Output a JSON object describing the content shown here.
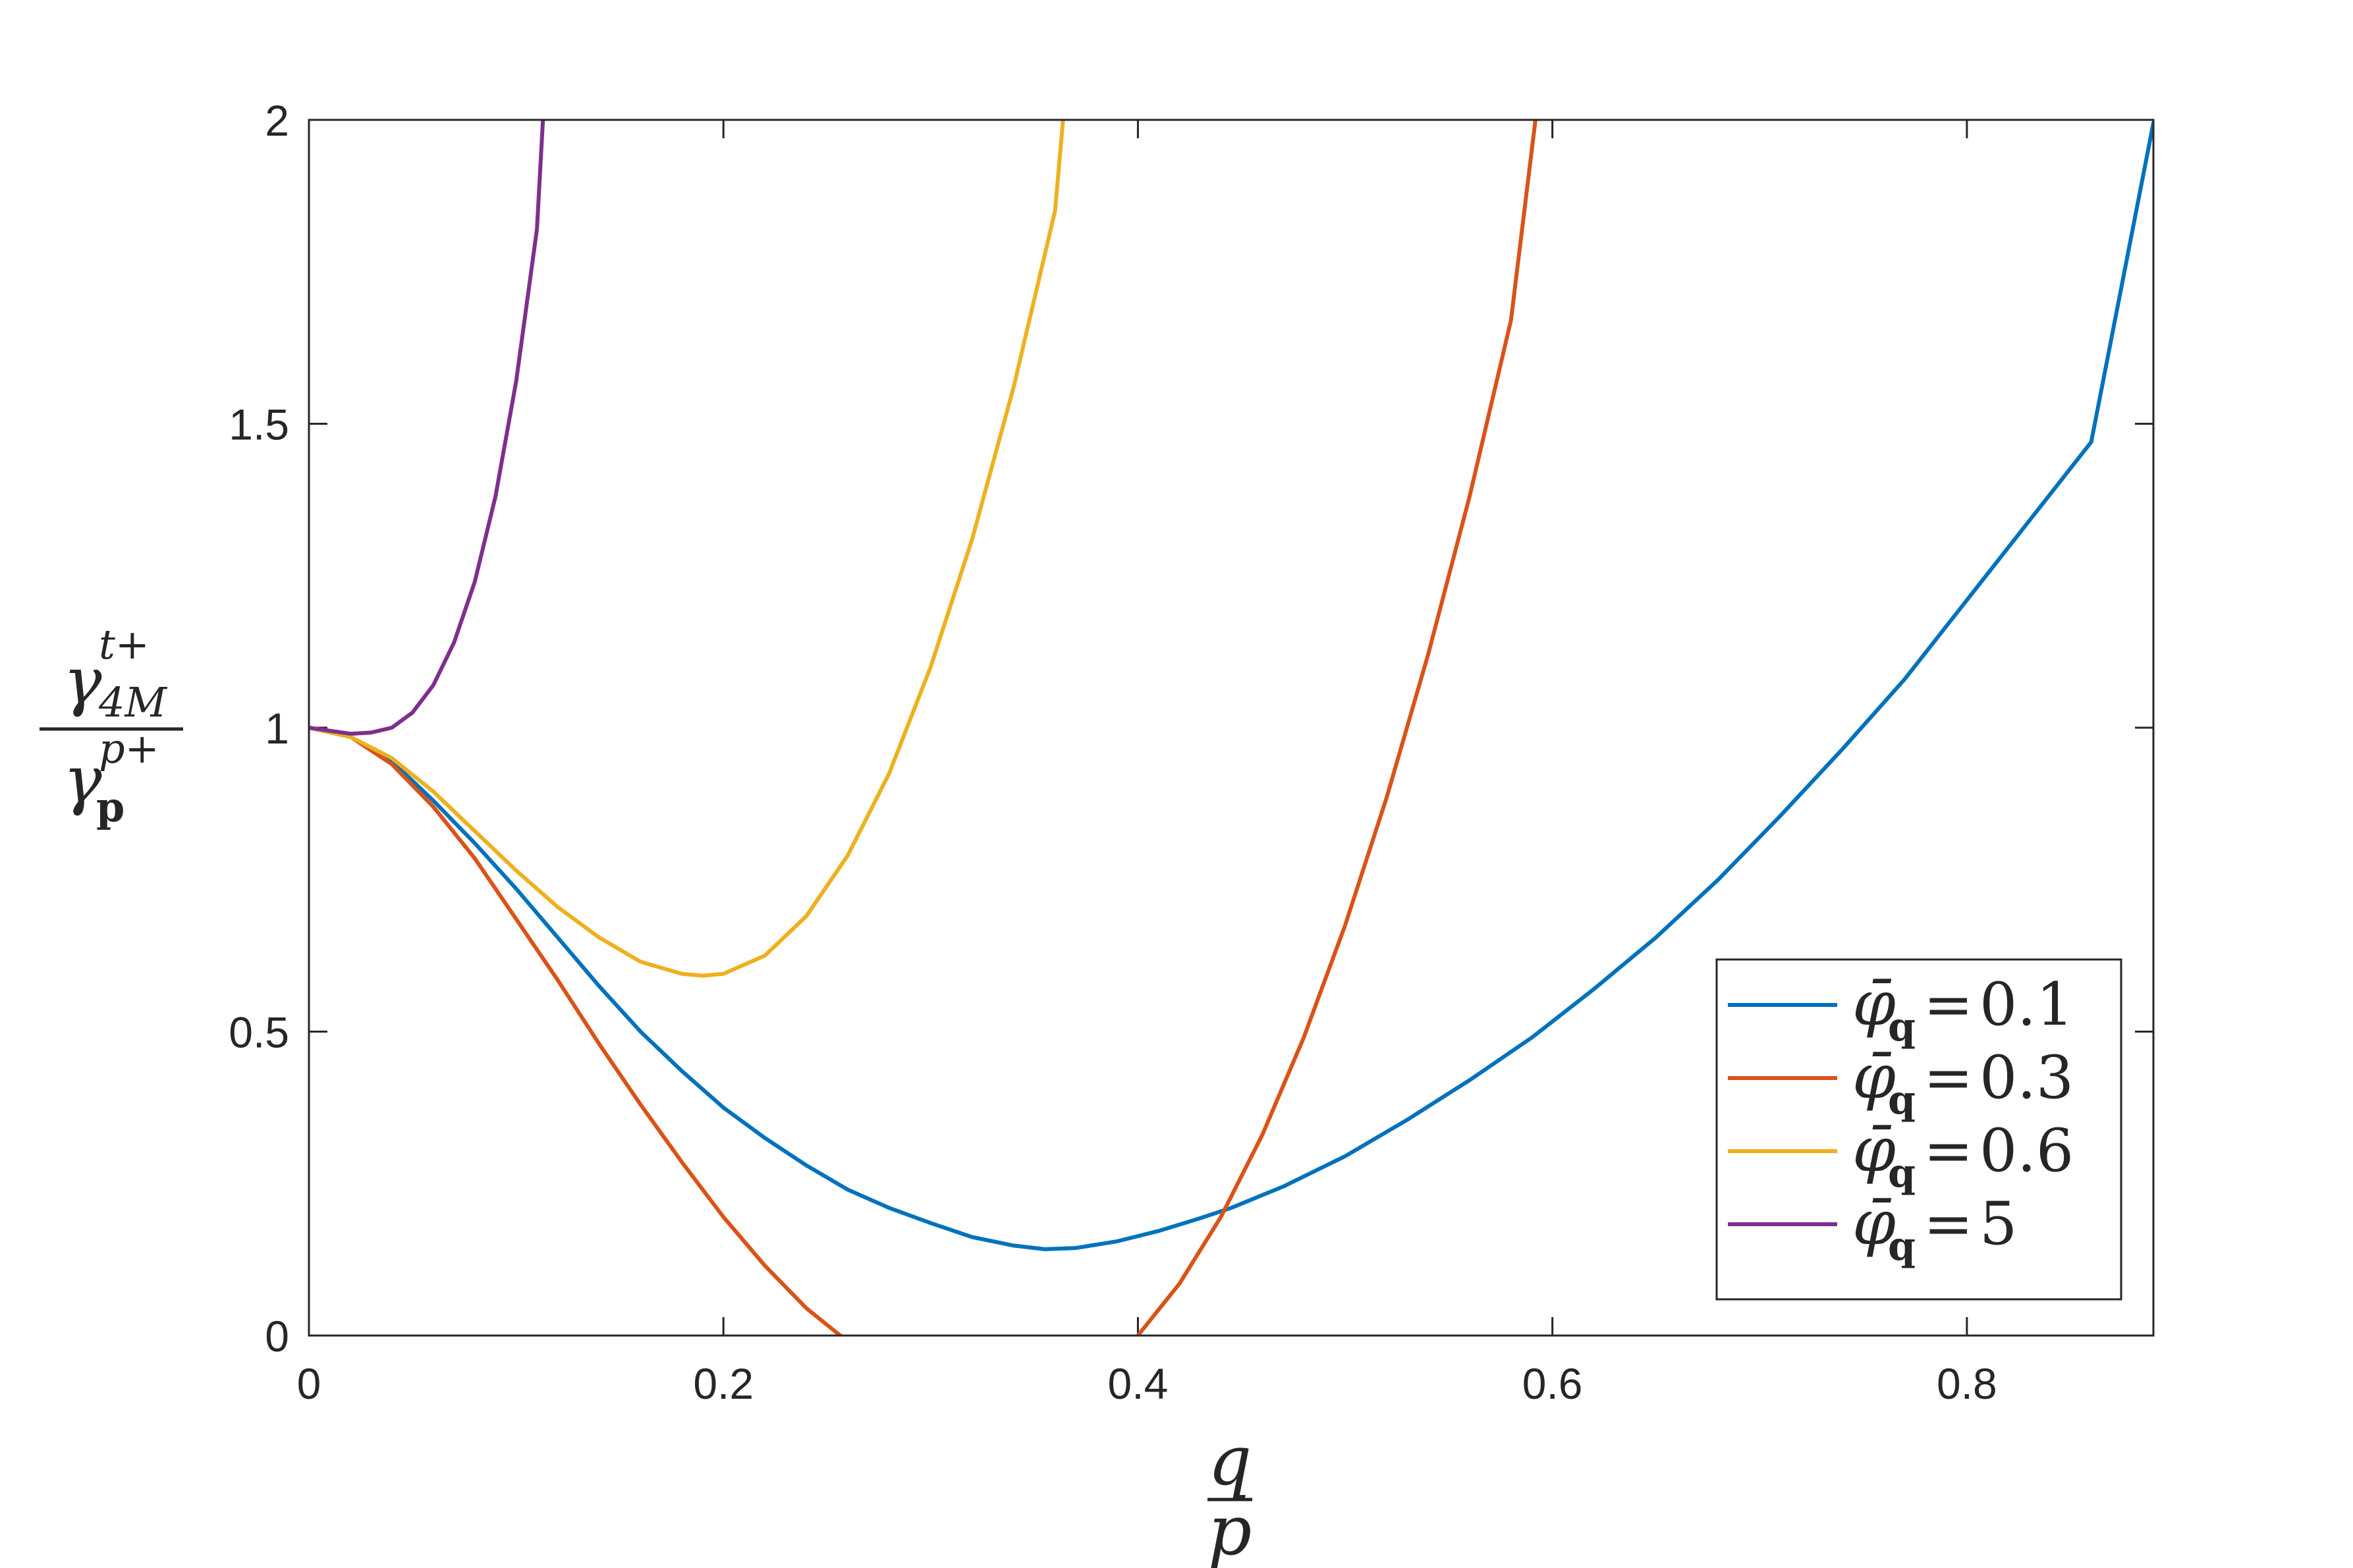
{
  "chart_data": {
    "type": "line",
    "title": "",
    "xlabel": {
      "num": "q",
      "den": "p"
    },
    "ylabel": {
      "num_base": "γ",
      "num_sup": "t+",
      "num_sub": "4M",
      "den_base": "γ",
      "den_sup": "p+",
      "den_sub": "p"
    },
    "xlim": [
      0,
      0.89
    ],
    "ylim": [
      0,
      2
    ],
    "xticks": [
      0,
      0.2,
      0.4,
      0.6,
      0.8
    ],
    "xtick_labels": [
      "0",
      "0.2",
      "0.4",
      "0.6",
      "0.8"
    ],
    "yticks": [
      0,
      0.5,
      1,
      1.5,
      2
    ],
    "ytick_labels": [
      "0",
      "0.5",
      "1",
      "1.5",
      "2"
    ],
    "grid": false,
    "legend_position": "bottom-right",
    "legend_symbol": "φ̄",
    "legend_subscript": "q",
    "series": [
      {
        "name": "0.1",
        "legend_value": "0.1",
        "color": "#0072BD",
        "x": [
          0,
          0.02,
          0.04,
          0.06,
          0.08,
          0.1,
          0.12,
          0.14,
          0.16,
          0.18,
          0.2,
          0.22,
          0.24,
          0.26,
          0.28,
          0.3,
          0.32,
          0.34,
          0.355,
          0.37,
          0.39,
          0.41,
          0.43,
          0.445,
          0.47,
          0.5,
          0.53,
          0.56,
          0.59,
          0.62,
          0.65,
          0.68,
          0.71,
          0.74,
          0.77,
          0.8,
          0.83,
          0.86,
          0.89
        ],
        "y": [
          1.0,
          0.985,
          0.945,
          0.88,
          0.81,
          0.735,
          0.655,
          0.575,
          0.5,
          0.435,
          0.375,
          0.325,
          0.28,
          0.24,
          0.21,
          0.185,
          0.162,
          0.148,
          0.142,
          0.144,
          0.155,
          0.172,
          0.193,
          0.21,
          0.245,
          0.295,
          0.355,
          0.42,
          0.49,
          0.57,
          0.655,
          0.75,
          0.855,
          0.965,
          1.08,
          1.21,
          1.34,
          1.47,
          1.995
        ]
      },
      {
        "name": "0.3",
        "legend_value": "0.3",
        "color": "#D95319",
        "x": [
          0,
          0.02,
          0.04,
          0.06,
          0.08,
          0.1,
          0.12,
          0.14,
          0.16,
          0.18,
          0.2,
          0.22,
          0.24,
          0.26,
          0.27,
          0.38,
          0.4,
          0.42,
          0.44,
          0.46,
          0.48,
          0.5,
          0.52,
          0.54,
          0.56,
          0.58,
          0.592
        ],
        "y": [
          1.0,
          0.985,
          0.94,
          0.87,
          0.785,
          0.685,
          0.585,
          0.48,
          0.38,
          0.285,
          0.195,
          0.115,
          0.045,
          -0.01,
          -0.04,
          -0.06,
          0.0,
          0.085,
          0.195,
          0.33,
          0.49,
          0.675,
          0.885,
          1.12,
          1.38,
          1.67,
          2.005
        ]
      },
      {
        "name": "0.6",
        "legend_value": "0.6",
        "color": "#EDB120",
        "x": [
          0,
          0.02,
          0.04,
          0.06,
          0.08,
          0.1,
          0.12,
          0.14,
          0.16,
          0.18,
          0.19,
          0.2,
          0.22,
          0.24,
          0.26,
          0.28,
          0.3,
          0.32,
          0.34,
          0.36,
          0.364
        ],
        "y": [
          1.0,
          0.985,
          0.95,
          0.895,
          0.83,
          0.765,
          0.705,
          0.655,
          0.615,
          0.595,
          0.592,
          0.595,
          0.625,
          0.69,
          0.79,
          0.925,
          1.1,
          1.31,
          1.56,
          1.85,
          2.005
        ]
      },
      {
        "name": "5",
        "legend_value": "5",
        "color": "#7E2F8E",
        "x": [
          0,
          0.01,
          0.02,
          0.03,
          0.04,
          0.05,
          0.06,
          0.07,
          0.08,
          0.09,
          0.1,
          0.11,
          0.113
        ],
        "y": [
          1.0,
          0.995,
          0.99,
          0.992,
          1.0,
          1.025,
          1.07,
          1.14,
          1.24,
          1.38,
          1.57,
          1.82,
          2.005
        ]
      }
    ]
  }
}
